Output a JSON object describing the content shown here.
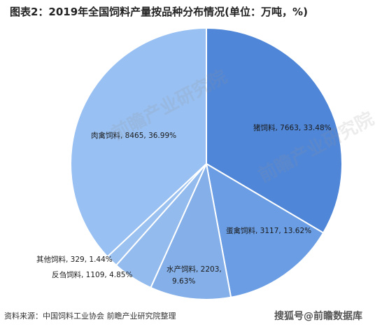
{
  "title": "图表2：2019年全国饲料产量按品种分布情况(单位：万吨，%)",
  "source": "资料来源：中国饲料工业协会 前瞻产业研究院整理",
  "watermark": "搜狐号@前瞻数据库",
  "background_watermark": "前瞻产业研究院",
  "chart_data": {
    "type": "pie",
    "title": "图表2：2019年全国饲料产量按品种分布情况(单位：万吨，%)",
    "unit": "万吨，%",
    "start_angle_deg": 0,
    "direction": "clockwise",
    "slices": [
      {
        "label": "猪饲料",
        "value": 7663,
        "percent": "33.48%",
        "color": "#4f86d8"
      },
      {
        "label": "蛋禽饲料",
        "value": 3117,
        "percent": "13.62%",
        "color": "#6a9de3"
      },
      {
        "label": "水产饲料",
        "value": 2203,
        "percent": "9.63%",
        "color": "#84afe8"
      },
      {
        "label": "反刍饲料",
        "value": 1109,
        "percent": "4.85%",
        "color": "#93bbee"
      },
      {
        "label": "其他饲料",
        "value": 329,
        "percent": "1.44%",
        "color": "#9bc1f0"
      },
      {
        "label": "肉禽饲料",
        "value": 8465,
        "percent": "36.99%",
        "color": "#98c0f2"
      }
    ],
    "data_labels": [
      {
        "slice": "猪饲料",
        "text": "猪饲料, 7663, 33.48%"
      },
      {
        "slice": "蛋禽饲料",
        "text": "蛋禽饲料, 3117, 13.62%"
      },
      {
        "slice": "水产饲料",
        "text": "水产饲料, 2203,",
        "text2": "9.63%"
      },
      {
        "slice": "反刍饲料",
        "text": "反刍饲料, 1109, 4.85%"
      },
      {
        "slice": "其他饲料",
        "text": "其他饲料, 329, 1.44%"
      },
      {
        "slice": "肉禽饲料",
        "text": "肉禽饲料, 8465, 36.99%"
      }
    ]
  }
}
